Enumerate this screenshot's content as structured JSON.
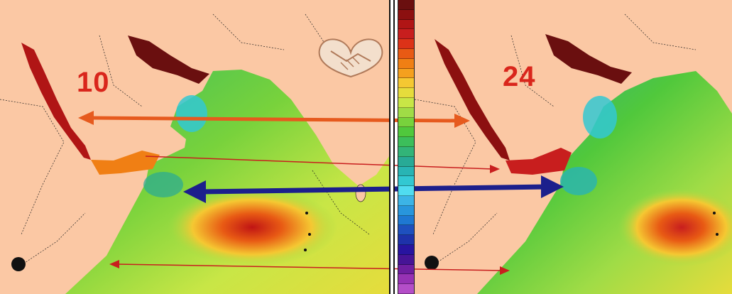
{
  "panels": {
    "left_label": "10",
    "right_label": "24"
  },
  "colors": {
    "land": "#fbc8a4",
    "label_red": "#d9261c",
    "orange_arrow": "#e65a1e",
    "blue_arrow": "#1c1f8c",
    "thin_arrow": "#c81e1e"
  },
  "legend": {
    "colors": [
      "#6a0f0f",
      "#8c1010",
      "#b01515",
      "#c81e1e",
      "#dc3218",
      "#e85a14",
      "#f07f14",
      "#f5a01e",
      "#f5c832",
      "#e6dc3c",
      "#c8e646",
      "#a0dc46",
      "#78d23c",
      "#50c83c",
      "#3cbe5a",
      "#32b478",
      "#28aa96",
      "#28b4b4",
      "#32c8d2",
      "#50dcf0",
      "#3cb4e6",
      "#2896dc",
      "#1e78d2",
      "#1e50be",
      "#1e32aa",
      "#2814a0",
      "#461496",
      "#6e1ea0",
      "#9632b4",
      "#b44ec8"
    ]
  }
}
